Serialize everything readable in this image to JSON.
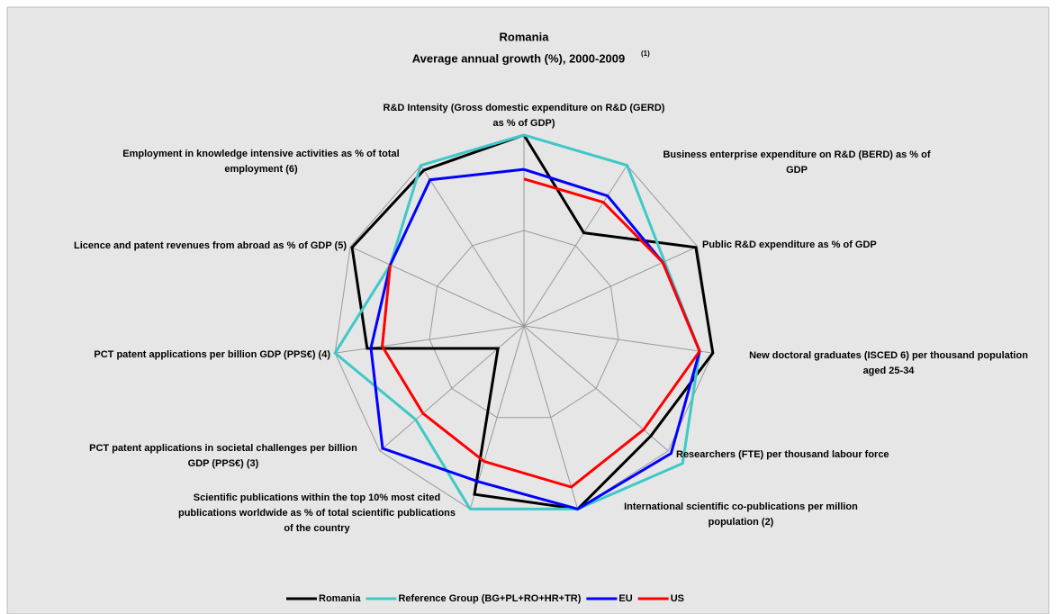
{
  "chart_data": {
    "type": "radar",
    "title": "Romania",
    "subtitle": "Average annual growth (%), 2000-2009",
    "footnote_marker": "(1)",
    "categories": [
      [
        "R&D Intensity (Gross domestic expenditure on R&D (GERD)",
        "as % of GDP)"
      ],
      [
        "Business enterprise expenditure on R&D (BERD) as % of",
        "GDP"
      ],
      [
        "Public R&D expenditure as % of GDP"
      ],
      [
        "New doctoral graduates (ISCED 6) per thousand population",
        "aged 25-34"
      ],
      [
        "Researchers (FTE) per thousand labour force"
      ],
      [
        "International scientific co-publications per million",
        "population (2)"
      ],
      [
        "Scientific publications within the top 10% most cited",
        "publications worldwide as % of total scientific publications",
        "of the country"
      ],
      [
        "PCT patent applications in societal challenges per billion",
        "GDP (PPS€) (3)"
      ],
      [
        "PCT patent applications per billion GDP (PPS€) (4)"
      ],
      [
        "Licence and patent revenues from abroad as % of GDP (5)"
      ],
      [
        "Employment in knowledge intensive activities as % of total",
        "employment (6)"
      ]
    ],
    "series": [
      {
        "name": "Romania",
        "color": "#000000",
        "values": [
          1.0,
          0.58,
          0.99,
          1.0,
          0.88,
          1.0,
          0.92,
          0.18,
          0.83,
          0.99,
          0.97
        ]
      },
      {
        "name": "Reference Group (BG+PL+RO+HR+TR)",
        "color": "#3ec8c8",
        "values": [
          1.0,
          1.0,
          0.81,
          0.93,
          1.1,
          1.0,
          1.0,
          0.75,
          1.0,
          0.77,
          1.0
        ]
      },
      {
        "name": "EU",
        "color": "#0000ff",
        "values": [
          0.82,
          0.81,
          0.8,
          0.93,
          1.02,
          1.0,
          0.85,
          0.98,
          0.81,
          0.77,
          0.91
        ]
      },
      {
        "name": "US",
        "color": "#ff0000",
        "values": [
          0.77,
          0.77,
          0.8,
          0.93,
          0.83,
          0.88,
          0.74,
          0.7,
          0.75,
          0.77,
          null
        ]
      }
    ],
    "rlim": [
      0,
      1
    ],
    "rticks": [
      0.5,
      1
    ],
    "grid": true,
    "legend": "bottom"
  }
}
